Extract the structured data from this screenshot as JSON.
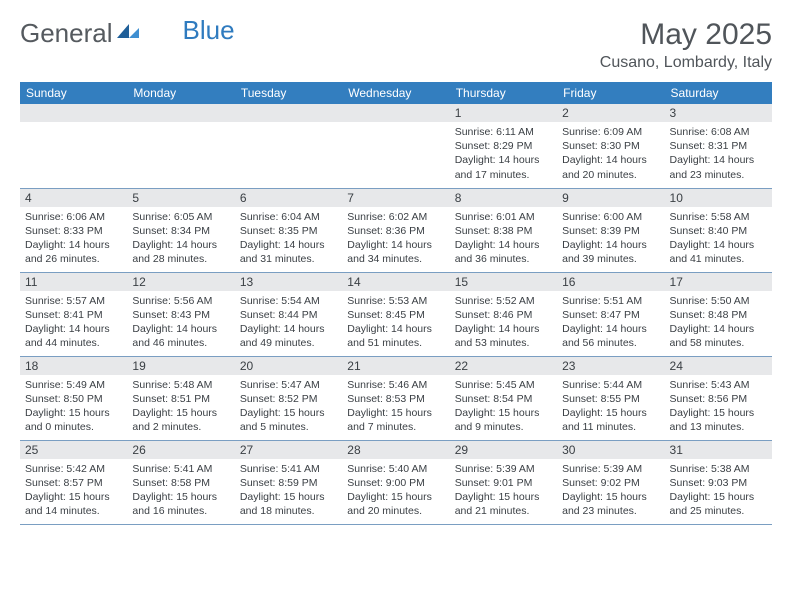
{
  "logo": {
    "text_a": "General",
    "text_b": "Blue"
  },
  "title": "May 2025",
  "location": "Cusano, Lombardy, Italy",
  "colors": {
    "header_bg": "#337ebf",
    "header_text": "#ffffff",
    "daynum_bg": "#e7e8ea",
    "text": "#3a3f44",
    "row_border": "#7a9ec2",
    "logo_gray": "#555a5f",
    "logo_blue": "#2f7bbf"
  },
  "weekdays": [
    "Sunday",
    "Monday",
    "Tuesday",
    "Wednesday",
    "Thursday",
    "Friday",
    "Saturday"
  ],
  "weeks": [
    [
      {
        "n": "",
        "sunrise": "",
        "sunset": "",
        "daylight": ""
      },
      {
        "n": "",
        "sunrise": "",
        "sunset": "",
        "daylight": ""
      },
      {
        "n": "",
        "sunrise": "",
        "sunset": "",
        "daylight": ""
      },
      {
        "n": "",
        "sunrise": "",
        "sunset": "",
        "daylight": ""
      },
      {
        "n": "1",
        "sunrise": "Sunrise: 6:11 AM",
        "sunset": "Sunset: 8:29 PM",
        "daylight": "Daylight: 14 hours and 17 minutes."
      },
      {
        "n": "2",
        "sunrise": "Sunrise: 6:09 AM",
        "sunset": "Sunset: 8:30 PM",
        "daylight": "Daylight: 14 hours and 20 minutes."
      },
      {
        "n": "3",
        "sunrise": "Sunrise: 6:08 AM",
        "sunset": "Sunset: 8:31 PM",
        "daylight": "Daylight: 14 hours and 23 minutes."
      }
    ],
    [
      {
        "n": "4",
        "sunrise": "Sunrise: 6:06 AM",
        "sunset": "Sunset: 8:33 PM",
        "daylight": "Daylight: 14 hours and 26 minutes."
      },
      {
        "n": "5",
        "sunrise": "Sunrise: 6:05 AM",
        "sunset": "Sunset: 8:34 PM",
        "daylight": "Daylight: 14 hours and 28 minutes."
      },
      {
        "n": "6",
        "sunrise": "Sunrise: 6:04 AM",
        "sunset": "Sunset: 8:35 PM",
        "daylight": "Daylight: 14 hours and 31 minutes."
      },
      {
        "n": "7",
        "sunrise": "Sunrise: 6:02 AM",
        "sunset": "Sunset: 8:36 PM",
        "daylight": "Daylight: 14 hours and 34 minutes."
      },
      {
        "n": "8",
        "sunrise": "Sunrise: 6:01 AM",
        "sunset": "Sunset: 8:38 PM",
        "daylight": "Daylight: 14 hours and 36 minutes."
      },
      {
        "n": "9",
        "sunrise": "Sunrise: 6:00 AM",
        "sunset": "Sunset: 8:39 PM",
        "daylight": "Daylight: 14 hours and 39 minutes."
      },
      {
        "n": "10",
        "sunrise": "Sunrise: 5:58 AM",
        "sunset": "Sunset: 8:40 PM",
        "daylight": "Daylight: 14 hours and 41 minutes."
      }
    ],
    [
      {
        "n": "11",
        "sunrise": "Sunrise: 5:57 AM",
        "sunset": "Sunset: 8:41 PM",
        "daylight": "Daylight: 14 hours and 44 minutes."
      },
      {
        "n": "12",
        "sunrise": "Sunrise: 5:56 AM",
        "sunset": "Sunset: 8:43 PM",
        "daylight": "Daylight: 14 hours and 46 minutes."
      },
      {
        "n": "13",
        "sunrise": "Sunrise: 5:54 AM",
        "sunset": "Sunset: 8:44 PM",
        "daylight": "Daylight: 14 hours and 49 minutes."
      },
      {
        "n": "14",
        "sunrise": "Sunrise: 5:53 AM",
        "sunset": "Sunset: 8:45 PM",
        "daylight": "Daylight: 14 hours and 51 minutes."
      },
      {
        "n": "15",
        "sunrise": "Sunrise: 5:52 AM",
        "sunset": "Sunset: 8:46 PM",
        "daylight": "Daylight: 14 hours and 53 minutes."
      },
      {
        "n": "16",
        "sunrise": "Sunrise: 5:51 AM",
        "sunset": "Sunset: 8:47 PM",
        "daylight": "Daylight: 14 hours and 56 minutes."
      },
      {
        "n": "17",
        "sunrise": "Sunrise: 5:50 AM",
        "sunset": "Sunset: 8:48 PM",
        "daylight": "Daylight: 14 hours and 58 minutes."
      }
    ],
    [
      {
        "n": "18",
        "sunrise": "Sunrise: 5:49 AM",
        "sunset": "Sunset: 8:50 PM",
        "daylight": "Daylight: 15 hours and 0 minutes."
      },
      {
        "n": "19",
        "sunrise": "Sunrise: 5:48 AM",
        "sunset": "Sunset: 8:51 PM",
        "daylight": "Daylight: 15 hours and 2 minutes."
      },
      {
        "n": "20",
        "sunrise": "Sunrise: 5:47 AM",
        "sunset": "Sunset: 8:52 PM",
        "daylight": "Daylight: 15 hours and 5 minutes."
      },
      {
        "n": "21",
        "sunrise": "Sunrise: 5:46 AM",
        "sunset": "Sunset: 8:53 PM",
        "daylight": "Daylight: 15 hours and 7 minutes."
      },
      {
        "n": "22",
        "sunrise": "Sunrise: 5:45 AM",
        "sunset": "Sunset: 8:54 PM",
        "daylight": "Daylight: 15 hours and 9 minutes."
      },
      {
        "n": "23",
        "sunrise": "Sunrise: 5:44 AM",
        "sunset": "Sunset: 8:55 PM",
        "daylight": "Daylight: 15 hours and 11 minutes."
      },
      {
        "n": "24",
        "sunrise": "Sunrise: 5:43 AM",
        "sunset": "Sunset: 8:56 PM",
        "daylight": "Daylight: 15 hours and 13 minutes."
      }
    ],
    [
      {
        "n": "25",
        "sunrise": "Sunrise: 5:42 AM",
        "sunset": "Sunset: 8:57 PM",
        "daylight": "Daylight: 15 hours and 14 minutes."
      },
      {
        "n": "26",
        "sunrise": "Sunrise: 5:41 AM",
        "sunset": "Sunset: 8:58 PM",
        "daylight": "Daylight: 15 hours and 16 minutes."
      },
      {
        "n": "27",
        "sunrise": "Sunrise: 5:41 AM",
        "sunset": "Sunset: 8:59 PM",
        "daylight": "Daylight: 15 hours and 18 minutes."
      },
      {
        "n": "28",
        "sunrise": "Sunrise: 5:40 AM",
        "sunset": "Sunset: 9:00 PM",
        "daylight": "Daylight: 15 hours and 20 minutes."
      },
      {
        "n": "29",
        "sunrise": "Sunrise: 5:39 AM",
        "sunset": "Sunset: 9:01 PM",
        "daylight": "Daylight: 15 hours and 21 minutes."
      },
      {
        "n": "30",
        "sunrise": "Sunrise: 5:39 AM",
        "sunset": "Sunset: 9:02 PM",
        "daylight": "Daylight: 15 hours and 23 minutes."
      },
      {
        "n": "31",
        "sunrise": "Sunrise: 5:38 AM",
        "sunset": "Sunset: 9:03 PM",
        "daylight": "Daylight: 15 hours and 25 minutes."
      }
    ]
  ]
}
